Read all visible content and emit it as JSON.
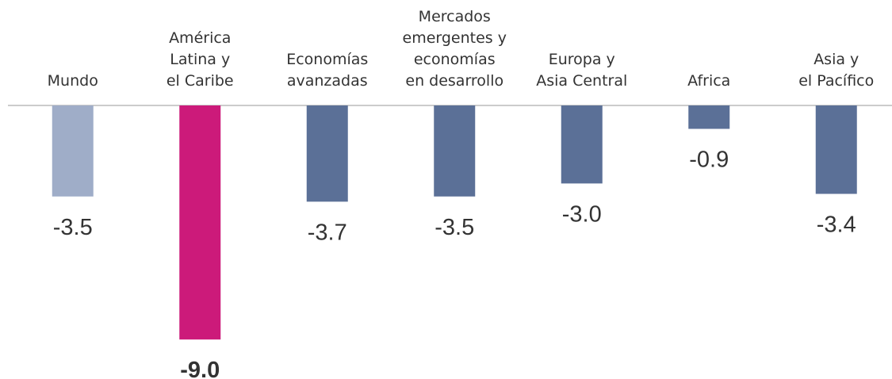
{
  "chart_data": {
    "type": "bar",
    "categories": [
      [
        "Mundo"
      ],
      [
        "América",
        "Latina y",
        "el Caribe"
      ],
      [
        "Economías",
        "avanzadas"
      ],
      [
        "Mercados",
        "emergentes y",
        "economías",
        "en desarrollo"
      ],
      [
        "Europa y",
        "Asia Central"
      ],
      [
        "Africa"
      ],
      [
        "Asia y",
        "el Pacífico"
      ]
    ],
    "values": [
      -3.5,
      -9.0,
      -3.7,
      -3.5,
      -3.0,
      -0.9,
      -3.4
    ],
    "value_labels": [
      "-3.5",
      "-9.0",
      "-3.7",
      "-3.5",
      "-3.0",
      "-0.9",
      "-3.4"
    ],
    "colors": [
      "#9fadc8",
      "#cc1a7a",
      "#5b7097",
      "#5b7097",
      "#5b7097",
      "#5b7097",
      "#5b7097"
    ]
  }
}
